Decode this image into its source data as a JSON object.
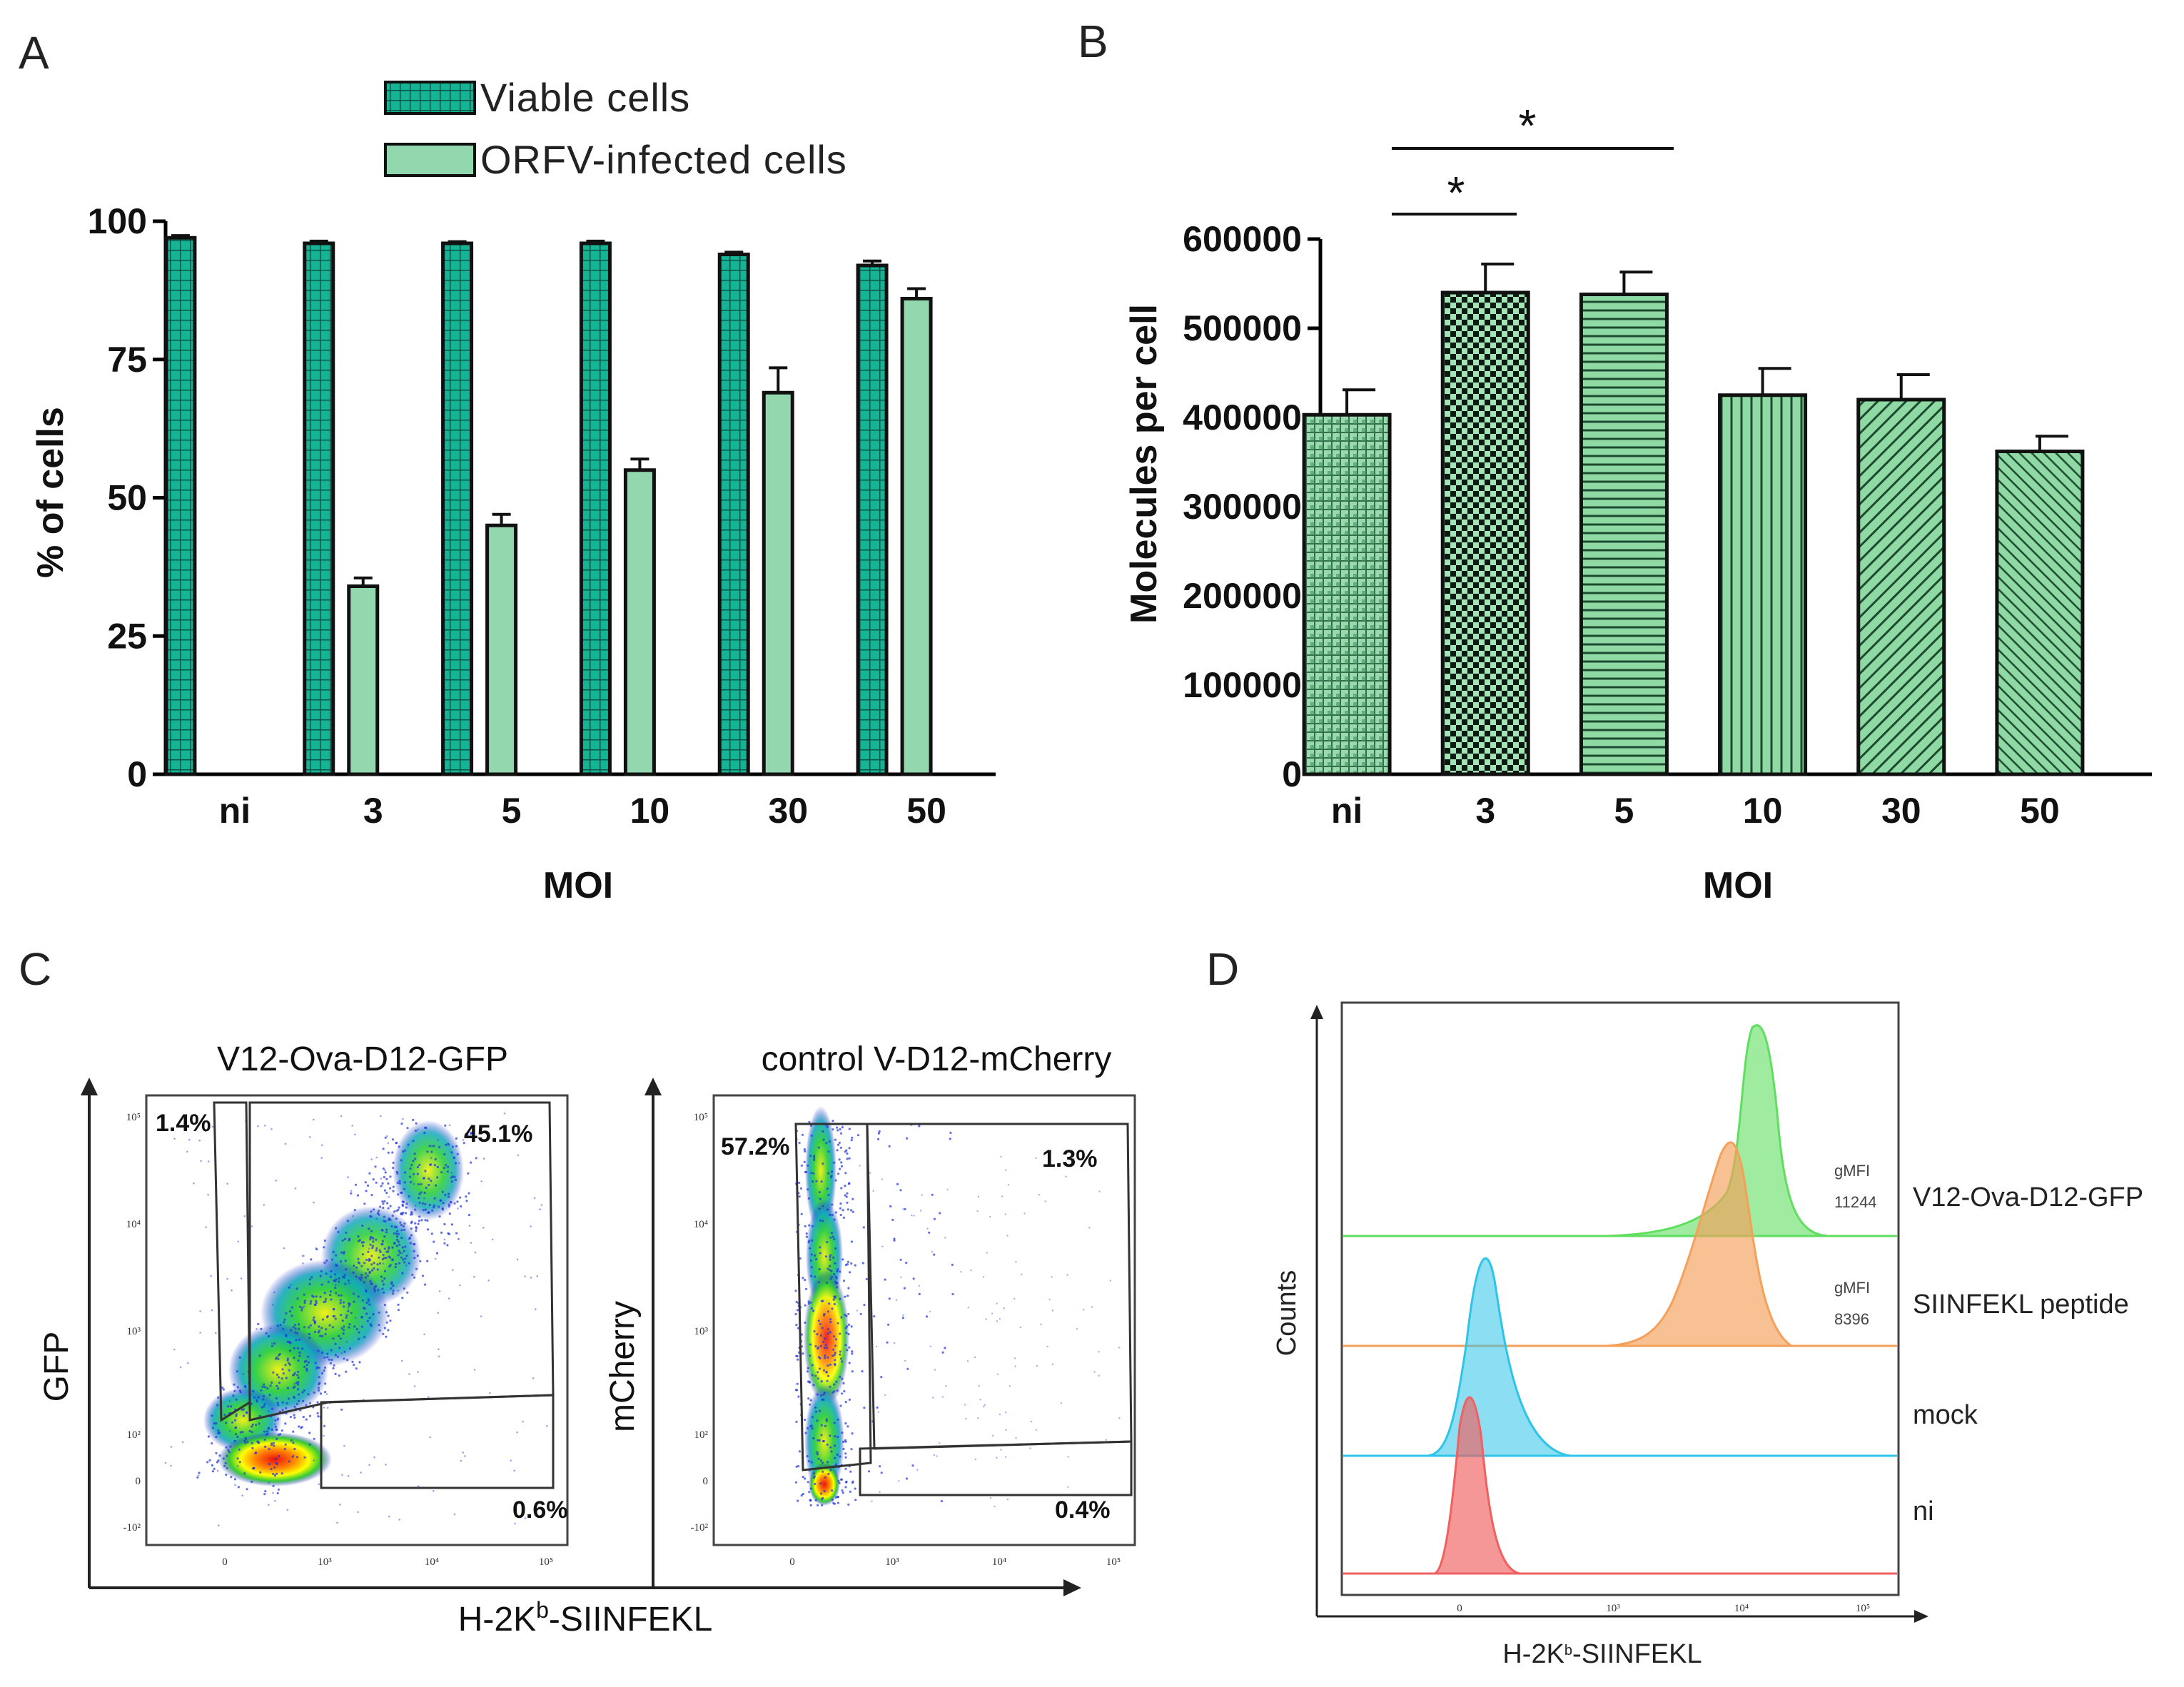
{
  "panels": {
    "a": "A",
    "b": "B",
    "c": "C",
    "d": "D"
  },
  "colors": {
    "viable": "#13b595",
    "infected": "#92d7ae",
    "green_light": "#7fd69a",
    "gfp": "#5fde5f",
    "siinfekl": "#f5a05a",
    "mock": "#2ec4e8",
    "ni": "#f06060"
  },
  "chart_data": [
    {
      "id": "A",
      "type": "bar",
      "title": "",
      "xlabel": "MOI",
      "ylabel": "% of cells",
      "ylim": [
        0,
        100
      ],
      "yticks": [
        "0",
        "25",
        "50",
        "75",
        "100"
      ],
      "categories": [
        "ni",
        "3",
        "5",
        "10",
        "30",
        "50"
      ],
      "legend": [
        "Viable cells",
        "ORFV-infected cells"
      ],
      "series": [
        {
          "name": "Viable cells",
          "values": [
            97,
            96,
            96,
            96,
            94,
            92
          ],
          "errors": [
            0.4,
            0.4,
            0.3,
            0.4,
            0.4,
            0.8
          ]
        },
        {
          "name": "ORFV-infected cells",
          "values": [
            0,
            34,
            45,
            55,
            69,
            86
          ],
          "errors": [
            0,
            1.5,
            2,
            2,
            4.5,
            1.8
          ]
        }
      ]
    },
    {
      "id": "B",
      "type": "bar",
      "title": "",
      "xlabel": "MOI",
      "ylabel": "Molecules per cell",
      "ylim": [
        0,
        600000
      ],
      "yticks": [
        "0",
        "100000",
        "200000",
        "300000",
        "400000",
        "500000",
        "600000"
      ],
      "categories": [
        "ni",
        "3",
        "5",
        "10",
        "30",
        "50"
      ],
      "series": [
        {
          "name": "Molecules per cell",
          "values": [
            403000,
            540000,
            538000,
            425000,
            420000,
            362000
          ],
          "errors": [
            28000,
            32000,
            25000,
            30000,
            28000,
            17000
          ]
        }
      ],
      "annotations": [
        {
          "text": "*",
          "from": "ni",
          "to": "3"
        },
        {
          "text": "*",
          "from": "ni",
          "to": "5"
        }
      ]
    },
    {
      "id": "C",
      "type": "scatter",
      "xlabel_prefix": "H-2K",
      "xlabel_sup": "b",
      "xlabel_suffix": "-SIINFEKL",
      "plots": [
        {
          "title": "V12-Ova-D12-GFP",
          "ylabel": "GFP",
          "gates": [
            "1.4%",
            "45.1%",
            "0.6%"
          ]
        },
        {
          "title": "control V-D12-mCherry",
          "ylabel": "mCherry",
          "gates": [
            "57.2%",
            "1.3%",
            "0.4%"
          ]
        }
      ],
      "yticks": [
        "10⁵",
        "10⁴",
        "10³",
        "10²",
        "0",
        "-10²"
      ],
      "xticks": [
        "0",
        "10³",
        "10⁴",
        "10⁵"
      ]
    },
    {
      "id": "D",
      "type": "histogram",
      "ylabel": "Counts",
      "xlabel_prefix": "H-2K",
      "xlabel_sup": "b",
      "xlabel_suffix": "-SIINFEKL",
      "xticks": [
        "0",
        "10³",
        "10⁴",
        "10⁵"
      ],
      "series": [
        {
          "name": "V12-Ova-D12-GFP",
          "gmfi_label": "gMFI",
          "gmfi_value": "11244"
        },
        {
          "name": "SIINFEKL peptide",
          "gmfi_label": "gMFI",
          "gmfi_value": "8396"
        },
        {
          "name": "mock"
        },
        {
          "name": "ni"
        }
      ]
    }
  ]
}
